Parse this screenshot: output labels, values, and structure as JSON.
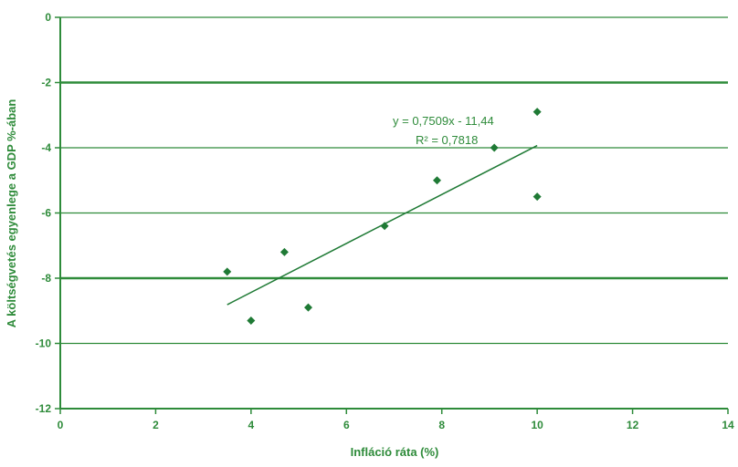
{
  "chart_data": {
    "type": "scatter",
    "title": "",
    "xlabel": "Infláció ráta (%)",
    "ylabel": "A költségvetés egyenlege a GDP %-ában",
    "xlim": [
      0,
      14
    ],
    "ylim": [
      -12,
      0
    ],
    "x_ticks": [
      "0",
      "2",
      "4",
      "6",
      "8",
      "10",
      "12",
      "14"
    ],
    "y_ticks": [
      "0",
      "-2",
      "-4",
      "-6",
      "-8",
      "-10",
      "-12"
    ],
    "grid": true,
    "legend": "none",
    "series": [
      {
        "points": [
          {
            "x": 3.5,
            "y": -7.8
          },
          {
            "x": 4.0,
            "y": -9.3
          },
          {
            "x": 4.7,
            "y": -7.2
          },
          {
            "x": 5.2,
            "y": -8.9
          },
          {
            "x": 6.8,
            "y": -6.4
          },
          {
            "x": 7.9,
            "y": -5.0
          },
          {
            "x": 9.1,
            "y": -4.0
          },
          {
            "x": 10.0,
            "y": -2.9
          },
          {
            "x": 10.0,
            "y": -5.5
          }
        ]
      }
    ],
    "trendline": {
      "slope": 0.7509,
      "intercept": -11.44,
      "x_range": [
        3.5,
        10.0
      ],
      "equation_label": "y = 0,7509x - 11,44",
      "r2_label": "R² = 0,7818"
    },
    "colors": {
      "text": "#2e8b3a",
      "axis": "#2e8b3a",
      "grid": "#2e8b3a",
      "marker": "#1f7a35",
      "trend": "#1f7a35"
    }
  }
}
